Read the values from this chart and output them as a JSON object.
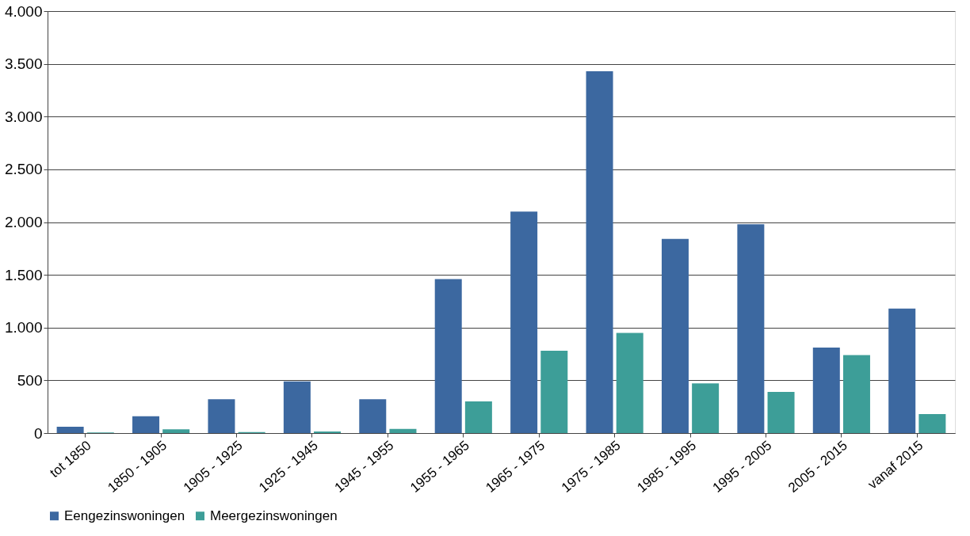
{
  "chart_data": {
    "type": "bar",
    "categories": [
      "tot 1850",
      "1850 - 1905",
      "1905 - 1925",
      "1925 - 1945",
      "1945 - 1955",
      "1955 - 1965",
      "1965 - 1975",
      "1975 - 1985",
      "1985 - 1995",
      "1995 - 2005",
      "2005 - 2015",
      "vanaf 2015"
    ],
    "series": [
      {
        "name": "Eengezinswoningen",
        "color": "#3c68a0",
        "values": [
          60,
          160,
          320,
          490,
          320,
          1460,
          2100,
          3430,
          1840,
          1980,
          810,
          1180
        ]
      },
      {
        "name": "Meergezinswoningen",
        "color": "#3d9e98",
        "values": [
          5,
          35,
          10,
          15,
          40,
          300,
          780,
          950,
          470,
          390,
          740,
          180
        ]
      }
    ],
    "ylim": [
      0,
      4000
    ],
    "yticks": [
      0,
      {
        "value": 500,
        "label": "500"
      },
      {
        "value": 1000,
        "label": "1.000"
      },
      {
        "value": 1500,
        "label": "1.500"
      },
      {
        "value": 2000,
        "label": "2.000"
      },
      {
        "value": 2500,
        "label": "2.500"
      },
      {
        "value": 3000,
        "label": "3.000"
      },
      {
        "value": 3500,
        "label": "3.500"
      },
      {
        "value": 4000,
        "label": "4.000"
      }
    ],
    "grid": "y",
    "legend": "bottom"
  }
}
